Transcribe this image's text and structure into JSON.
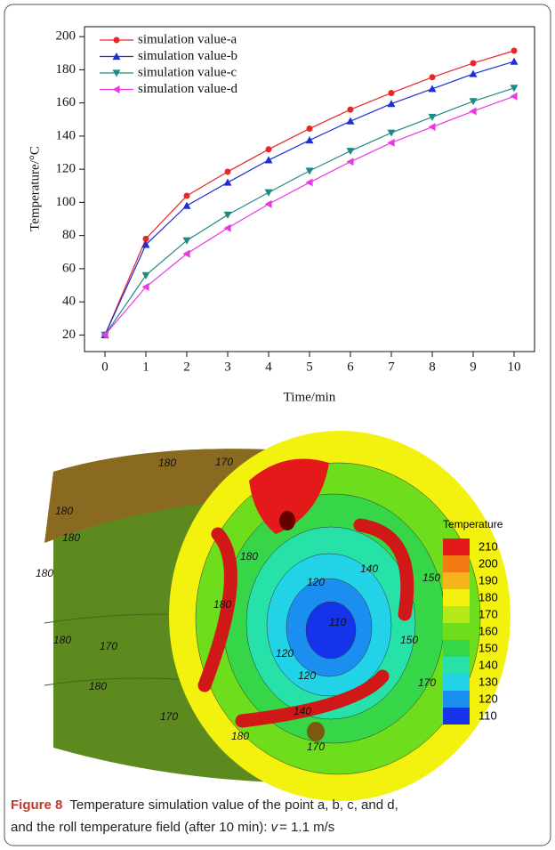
{
  "chart_data": {
    "type": "line",
    "x_label": "Time/min",
    "y_label": "Temperature/°C",
    "x": [
      0,
      1,
      2,
      3,
      4,
      5,
      6,
      7,
      8,
      9,
      10
    ],
    "series": [
      {
        "name": "simulation value-a",
        "color": "#e8262a",
        "marker": "circle",
        "values": [
          20,
          78,
          104,
          118.5,
          132,
          144.5,
          156,
          166,
          175.5,
          184,
          191.5
        ]
      },
      {
        "name": "simulation value-b",
        "color": "#1f2fcf",
        "marker": "triangle-up",
        "values": [
          20,
          74.5,
          98,
          112,
          125.5,
          137.5,
          149,
          159.5,
          168.5,
          177.5,
          185
        ]
      },
      {
        "name": "simulation value-c",
        "color": "#1f8a84",
        "marker": "triangle-down",
        "values": [
          20,
          56,
          77,
          92.5,
          106,
          119,
          131,
          142,
          151.5,
          161,
          169
        ]
      },
      {
        "name": "simulation value-d",
        "color": "#e83ae0",
        "marker": "triangle-left",
        "values": [
          20,
          49,
          69,
          84.5,
          99,
          112,
          124.5,
          136,
          145.5,
          155,
          164
        ]
      }
    ],
    "xlim": [
      -0.5,
      10.5
    ],
    "xticks": [
      0,
      1,
      2,
      3,
      4,
      5,
      6,
      7,
      8,
      9,
      10
    ],
    "ylim": [
      10,
      206
    ],
    "yticks": [
      20,
      40,
      60,
      80,
      100,
      120,
      140,
      160,
      180,
      200
    ],
    "legend": "upper-left"
  },
  "field_image": {
    "colorbar_title": "Temperature",
    "levels": [
      210,
      200,
      190,
      180,
      170,
      160,
      150,
      140,
      130,
      120,
      110
    ],
    "level_colors": [
      "#e41a1a",
      "#f47a14",
      "#f7b51c",
      "#f3f20e",
      "#b5ea18",
      "#6ede1c",
      "#36d648",
      "#26e2a8",
      "#22d3e8",
      "#1b8ff0",
      "#1433ea"
    ],
    "contour_labels": [
      "180",
      "170",
      "180",
      "180",
      "180",
      "180",
      "170",
      "180",
      "170",
      "180",
      "180",
      "120",
      "110",
      "120",
      "150",
      "150",
      "140",
      "170",
      "180",
      "170",
      "140",
      "120"
    ]
  },
  "caption": {
    "label": "Figure 8",
    "line1": "Temperature simulation value of the point a, b, c, and d,",
    "line2": "and the roll temperature field (after 10 min): ",
    "variable": "v",
    "line2_end": "= 1.1 m/s"
  }
}
